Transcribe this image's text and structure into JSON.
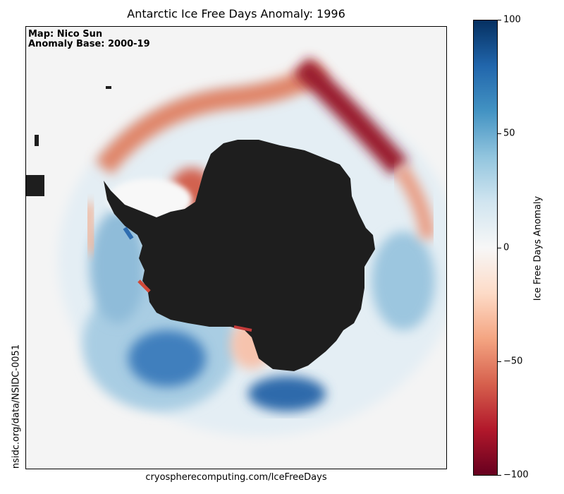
{
  "title": "Antarctic Ice Free Days Anomaly: 1996",
  "credit": {
    "line1": "Map: Nico Sun",
    "line2": "Anomaly Base: 2000-19"
  },
  "footer_url": "cryospherecomputing.com/IceFreeDays",
  "side_source": "nsidc.org/data/NSIDC-0051",
  "colorbar": {
    "label": "Ice Free Days Anomaly",
    "range": [
      -100,
      100
    ],
    "ticks": [
      "100",
      "50",
      "0",
      "−50",
      "−100"
    ],
    "tick_values": [
      100,
      50,
      0,
      -50,
      -100
    ],
    "colormap": "RdBu",
    "colors": [
      "#67001f",
      "#b2182b",
      "#d6604d",
      "#f4a582",
      "#fddbc7",
      "#f7f7f7",
      "#d1e5f0",
      "#92c5de",
      "#4393c3",
      "#2166ac",
      "#053061"
    ]
  },
  "map": {
    "continent_color": "#1e1e1e",
    "background_color": "#f4f4f4"
  }
}
